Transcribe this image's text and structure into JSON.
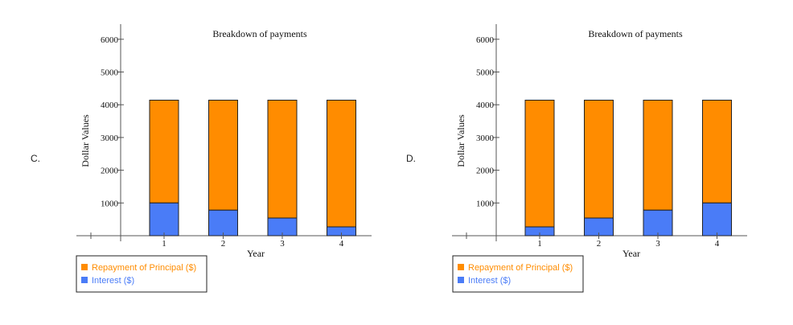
{
  "options": [
    "C.",
    "D."
  ],
  "colors": {
    "principal": "#ff8c00",
    "interest": "#4a7cf7",
    "axis": "#555555"
  },
  "chart_data": [
    {
      "type": "bar",
      "stacked": true,
      "title": "Breakdown of payments",
      "xlabel": "Year",
      "ylabel": "Dollar Values",
      "ylim": [
        0,
        6000
      ],
      "yticks": [
        1000,
        2000,
        3000,
        4000,
        5000,
        6000
      ],
      "categories": [
        "1",
        "2",
        "3",
        "4"
      ],
      "series": [
        {
          "name": "Interest ($)",
          "values": [
            1000,
            780,
            540,
            270
          ]
        },
        {
          "name": "Repayment of Principal ($)",
          "values": [
            3140,
            3360,
            3600,
            3870
          ]
        }
      ],
      "legend_position": "bottom-left"
    },
    {
      "type": "bar",
      "stacked": true,
      "title": "Breakdown of payments",
      "xlabel": "Year",
      "ylabel": "Dollar Values",
      "ylim": [
        0,
        6000
      ],
      "yticks": [
        1000,
        2000,
        3000,
        4000,
        5000,
        6000
      ],
      "categories": [
        "1",
        "2",
        "3",
        "4"
      ],
      "series": [
        {
          "name": "Interest ($)",
          "values": [
            270,
            540,
            780,
            1000
          ]
        },
        {
          "name": "Repayment of Principal ($)",
          "values": [
            3870,
            3600,
            3360,
            3140
          ]
        }
      ],
      "legend_position": "bottom-left"
    }
  ]
}
